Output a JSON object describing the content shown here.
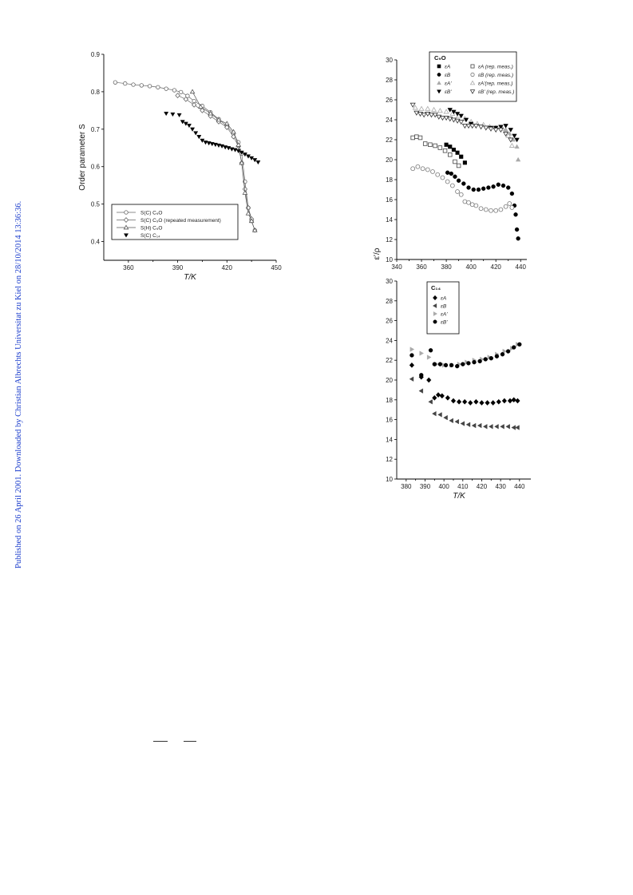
{
  "side_note": "Published on 26 April 2001. Downloaded by Christian Albrechts Universitat zu Kiel on 28/10/2014 13:36:36.",
  "chart_data": [
    {
      "type": "scatter",
      "ylabel": "Order parameter S",
      "xlabel": "T/K",
      "xlim": [
        345,
        450
      ],
      "ylim": [
        0.35,
        0.9
      ],
      "xticks": [
        360,
        390,
        420,
        450
      ],
      "yticks": [
        0.4,
        0.5,
        0.6,
        0.7,
        0.8,
        0.9
      ],
      "legend_position": "bottom-left",
      "series": [
        {
          "name": "S(C) C₉O",
          "marker": "circle-open",
          "color": "#666666",
          "line": true,
          "x": [
            352,
            358,
            363,
            368,
            373,
            378,
            383,
            388,
            392,
            396,
            400,
            405,
            410,
            415,
            420,
            424,
            427,
            429,
            431,
            433,
            435,
            437
          ],
          "y": [
            0.825,
            0.822,
            0.819,
            0.817,
            0.815,
            0.812,
            0.808,
            0.804,
            0.799,
            0.789,
            0.775,
            0.762,
            0.745,
            0.727,
            0.708,
            0.688,
            0.665,
            0.635,
            0.56,
            0.49,
            0.455,
            0.43
          ]
        },
        {
          "name": "S(C) C₉O (repeated measurement)",
          "marker": "diamond-open",
          "color": "#666666",
          "line": true,
          "x": [
            390,
            395,
            400,
            405,
            410,
            415,
            420,
            424,
            427,
            429,
            431,
            433,
            435
          ],
          "y": [
            0.79,
            0.78,
            0.765,
            0.75,
            0.735,
            0.72,
            0.705,
            0.68,
            0.655,
            0.61,
            0.54,
            0.49,
            0.46
          ]
        },
        {
          "name": "S(H) C₉O",
          "marker": "triangle-open",
          "color": "#555555",
          "line": true,
          "x": [
            399,
            404,
            410,
            415,
            420,
            424,
            427,
            429,
            431,
            433,
            435,
            437
          ],
          "y": [
            0.8,
            0.76,
            0.742,
            0.725,
            0.715,
            0.693,
            0.658,
            0.61,
            0.53,
            0.475,
            0.455,
            0.43
          ]
        },
        {
          "name": "S(C) C₁₄",
          "marker": "triangle-down-filled",
          "color": "#000000",
          "line": false,
          "x": [
            383,
            387,
            391,
            393,
            395,
            397,
            399,
            401,
            403,
            405,
            407,
            409,
            411,
            413,
            415,
            417,
            419,
            421,
            423,
            425,
            427,
            429,
            431,
            433,
            435,
            437,
            439
          ],
          "y": [
            0.742,
            0.74,
            0.738,
            0.72,
            0.715,
            0.71,
            0.7,
            0.69,
            0.68,
            0.67,
            0.665,
            0.663,
            0.661,
            0.659,
            0.657,
            0.655,
            0.652,
            0.65,
            0.647,
            0.645,
            0.642,
            0.638,
            0.633,
            0.628,
            0.623,
            0.618,
            0.612
          ]
        }
      ]
    },
    {
      "type": "scatter",
      "ylabel": "ε'/ρ",
      "xlabel": "",
      "xlim": [
        340,
        445
      ],
      "ylim": [
        10,
        30
      ],
      "xticks": [
        340,
        360,
        380,
        400,
        420,
        440
      ],
      "yticks": [
        10,
        12,
        14,
        16,
        18,
        20,
        22,
        24,
        26,
        28,
        30
      ],
      "legend_position": "top-right",
      "legend_title": "C₉O",
      "legend_labels": [
        "εA",
        "εA (rep. meas.)",
        "εB",
        "εB (rep. meas.)",
        "εA'",
        "εA'(rep. meas.)",
        "εB'",
        "εB' (rep. meas.)"
      ],
      "series": [
        {
          "name": "εA",
          "marker": "square-filled",
          "color": "#000000",
          "x": [
            380,
            383,
            386,
            389,
            392,
            395
          ],
          "y": [
            21.5,
            21.3,
            21.0,
            20.7,
            20.3,
            19.7
          ]
        },
        {
          "name": "εA (rep. meas.)",
          "marker": "square-open",
          "color": "#444444",
          "x": [
            353,
            356,
            359,
            363,
            367,
            371,
            375,
            379,
            383,
            387,
            390
          ],
          "y": [
            22.2,
            22.3,
            22.2,
            21.6,
            21.5,
            21.4,
            21.2,
            20.9,
            20.5,
            19.8,
            19.4
          ]
        },
        {
          "name": "εB",
          "marker": "circle-filled",
          "color": "#000000",
          "x": [
            381,
            384,
            387,
            390,
            394,
            398,
            402,
            406,
            410,
            414,
            418,
            422,
            426,
            430,
            433,
            435,
            436,
            437,
            438
          ],
          "y": [
            18.7,
            18.6,
            18.3,
            17.9,
            17.6,
            17.2,
            17.0,
            17.0,
            17.1,
            17.2,
            17.3,
            17.5,
            17.4,
            17.2,
            16.6,
            15.4,
            14.5,
            13.0,
            12.1
          ]
        },
        {
          "name": "εB (rep. meas.)",
          "marker": "circle-open",
          "color": "#777777",
          "x": [
            353,
            357,
            361,
            365,
            369,
            373,
            377,
            381,
            385,
            389,
            392,
            395,
            398,
            401,
            404,
            408,
            412,
            416,
            420,
            424,
            428,
            431,
            433
          ],
          "y": [
            19.1,
            19.3,
            19.1,
            19.0,
            18.8,
            18.5,
            18.2,
            17.8,
            17.4,
            16.8,
            16.5,
            15.8,
            15.7,
            15.5,
            15.4,
            15.1,
            15.0,
            14.9,
            14.9,
            15.0,
            15.3,
            15.6,
            15.2
          ]
        },
        {
          "name": "εA'",
          "marker": "triangle-filled",
          "color": "#aaaaaa",
          "x": [
            425,
            428,
            431,
            434,
            437,
            438
          ],
          "y": [
            23.2,
            23.0,
            22.6,
            22.0,
            21.3,
            20.0
          ]
        },
        {
          "name": "εA'(rep. meas.)",
          "marker": "triangle-open",
          "color": "#aaaaaa",
          "x": [
            355,
            360,
            365,
            370,
            375,
            380,
            385,
            390,
            395,
            400,
            405,
            410,
            415,
            420,
            425,
            430,
            433
          ],
          "y": [
            25.2,
            25.1,
            25.1,
            25.0,
            24.9,
            24.8,
            24.6,
            24.4,
            24.1,
            23.8,
            23.6,
            23.5,
            23.3,
            23.2,
            23.1,
            22.4,
            21.4
          ]
        },
        {
          "name": "εB'",
          "marker": "triangle-down-filled",
          "color": "#000000",
          "x": [
            383,
            386,
            389,
            392,
            396,
            400,
            404,
            408,
            412,
            416,
            420,
            424,
            428,
            432,
            435,
            437
          ],
          "y": [
            25.0,
            24.8,
            24.6,
            24.4,
            24.0,
            23.6,
            23.4,
            23.3,
            23.2,
            23.2,
            23.2,
            23.3,
            23.4,
            23.0,
            22.4,
            22.0
          ]
        },
        {
          "name": "εB' (rep. meas.)",
          "marker": "triangle-down-open",
          "color": "#333333",
          "x": [
            353,
            356,
            359,
            362,
            365,
            368,
            371,
            374,
            377,
            380,
            383,
            386,
            389,
            392,
            395,
            398,
            401,
            404,
            408,
            412,
            416,
            420,
            424,
            428,
            432
          ],
          "y": [
            25.5,
            24.7,
            24.6,
            24.5,
            24.6,
            24.5,
            24.5,
            24.3,
            24.2,
            24.2,
            24.1,
            24.0,
            23.9,
            23.8,
            23.4,
            23.4,
            23.4,
            23.4,
            23.3,
            23.2,
            23.1,
            23.0,
            23.0,
            22.6,
            22.0
          ]
        }
      ]
    },
    {
      "type": "scatter",
      "ylabel": "",
      "xlabel": "T/K",
      "xlim": [
        375,
        446
      ],
      "ylim": [
        10,
        30
      ],
      "xticks": [
        380,
        390,
        400,
        410,
        420,
        430,
        440
      ],
      "yticks": [
        10,
        12,
        14,
        16,
        18,
        20,
        22,
        24,
        26,
        28,
        30
      ],
      "legend_position": "top-left",
      "legend_title": "C₁₄",
      "legend_labels": [
        "εA",
        "εB",
        "εA'",
        "εB'"
      ],
      "series": [
        {
          "name": "εA",
          "marker": "diamond-filled",
          "color": "#000000",
          "x": [
            383,
            388,
            392,
            395,
            397,
            399,
            402,
            405,
            408,
            411,
            414,
            417,
            420,
            423,
            426,
            429,
            432,
            435,
            437,
            439
          ],
          "y": [
            21.5,
            20.3,
            20.0,
            18.2,
            18.5,
            18.4,
            18.2,
            17.9,
            17.8,
            17.8,
            17.7,
            17.8,
            17.7,
            17.7,
            17.7,
            17.8,
            17.9,
            17.9,
            18.0,
            17.9
          ]
        },
        {
          "name": "εB",
          "marker": "triangle-left-filled",
          "color": "#444444",
          "x": [
            383,
            388,
            393,
            395,
            398,
            401,
            404,
            407,
            410,
            413,
            416,
            419,
            422,
            425,
            428,
            431,
            434,
            437,
            439
          ],
          "y": [
            20.1,
            18.9,
            17.8,
            16.6,
            16.5,
            16.2,
            15.9,
            15.8,
            15.6,
            15.5,
            15.4,
            15.4,
            15.3,
            15.3,
            15.3,
            15.3,
            15.3,
            15.2,
            15.2
          ]
        },
        {
          "name": "εA'",
          "marker": "triangle-right-filled",
          "color": "#aaaaaa",
          "x": [
            383,
            388,
            392,
            396,
            400,
            404,
            408,
            412,
            416,
            420,
            424,
            428,
            432,
            436,
            439
          ],
          "y": [
            23.1,
            22.7,
            22.3,
            21.6,
            21.5,
            21.5,
            21.6,
            21.8,
            22.0,
            22.1,
            22.3,
            22.6,
            22.9,
            23.2,
            23.6
          ]
        },
        {
          "name": "εB'",
          "marker": "circle-filled",
          "color": "#000000",
          "x": [
            383,
            388,
            393,
            395,
            398,
            401,
            404,
            407,
            410,
            413,
            416,
            419,
            422,
            425,
            428,
            431,
            434,
            437,
            440
          ],
          "y": [
            22.5,
            20.5,
            23.0,
            21.6,
            21.6,
            21.5,
            21.5,
            21.4,
            21.6,
            21.7,
            21.8,
            21.9,
            22.1,
            22.2,
            22.4,
            22.6,
            22.9,
            23.3,
            23.6
          ]
        }
      ]
    }
  ]
}
